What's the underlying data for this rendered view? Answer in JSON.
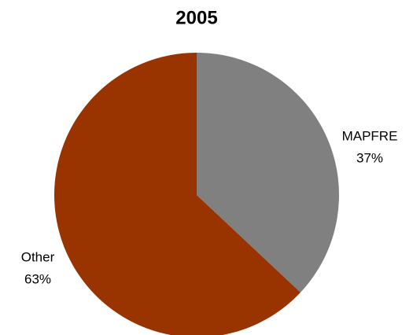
{
  "chart_data": {
    "type": "pie",
    "title": "2005",
    "categories": [
      "MAPFRE",
      "Other"
    ],
    "values": [
      37,
      63
    ],
    "value_labels": [
      "37%",
      "63%"
    ],
    "colors": [
      "#808080",
      "#993300"
    ]
  }
}
